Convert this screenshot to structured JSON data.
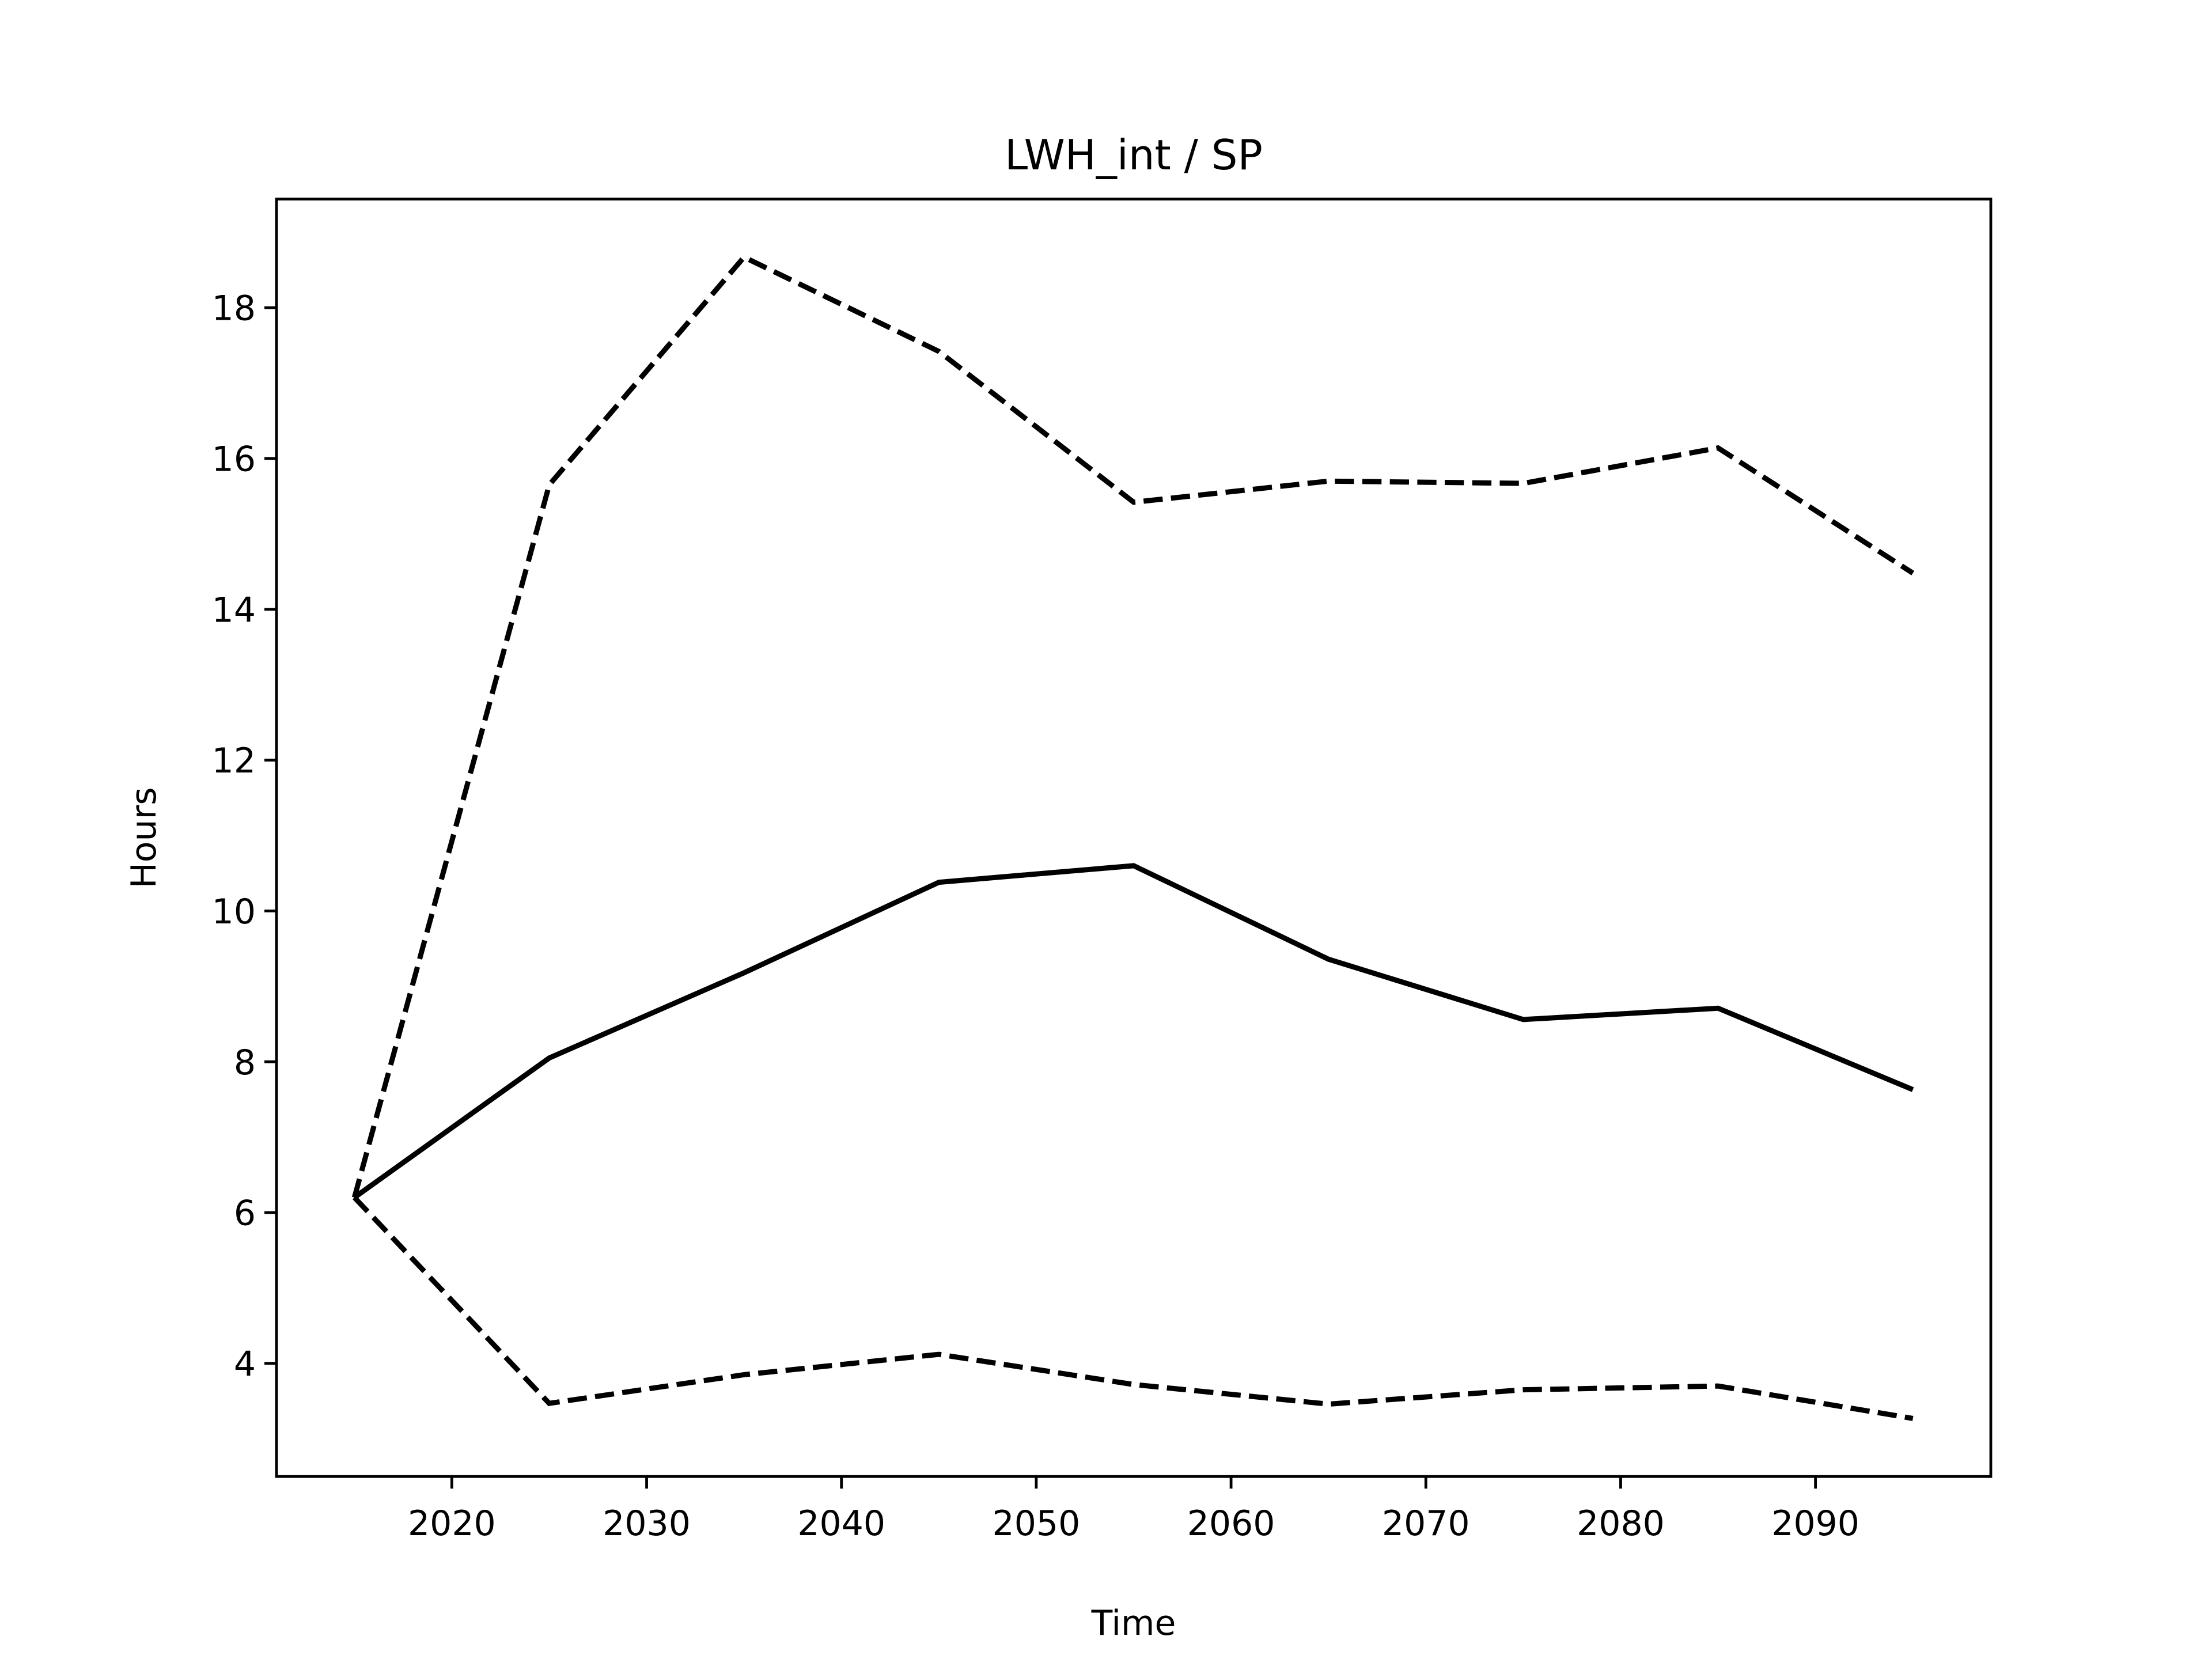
{
  "chart_data": {
    "type": "line",
    "title": "LWH_int / SP",
    "x_label": "Time",
    "y_label": "Hours",
    "x": [
      2015,
      2025,
      2035,
      2045,
      2055,
      2065,
      2075,
      2085,
      2095
    ],
    "series": [
      {
        "color": "#000000",
        "dashed": false,
        "values": [
          6.2,
          8.05,
          9.18,
          10.38,
          10.6,
          9.36,
          8.56,
          8.71,
          7.63
        ]
      },
      {
        "color": "#000000",
        "dashed": true,
        "values": [
          6.2,
          15.65,
          18.67,
          17.42,
          15.42,
          15.7,
          15.67,
          16.14,
          14.48
        ]
      },
      {
        "color": "#000000",
        "dashed": true,
        "values": [
          6.2,
          3.47,
          3.85,
          4.12,
          3.72,
          3.46,
          3.65,
          3.7,
          3.27
        ]
      }
    ],
    "xlim": [
      2011,
      2099
    ],
    "xticks": [
      2020,
      2030,
      2040,
      2050,
      2060,
      2070,
      2080,
      2090
    ],
    "ylim": [
      2.5,
      19.44
    ],
    "yticks": [
      4,
      6,
      8,
      10,
      12,
      14,
      16,
      18
    ],
    "grid": false
  }
}
